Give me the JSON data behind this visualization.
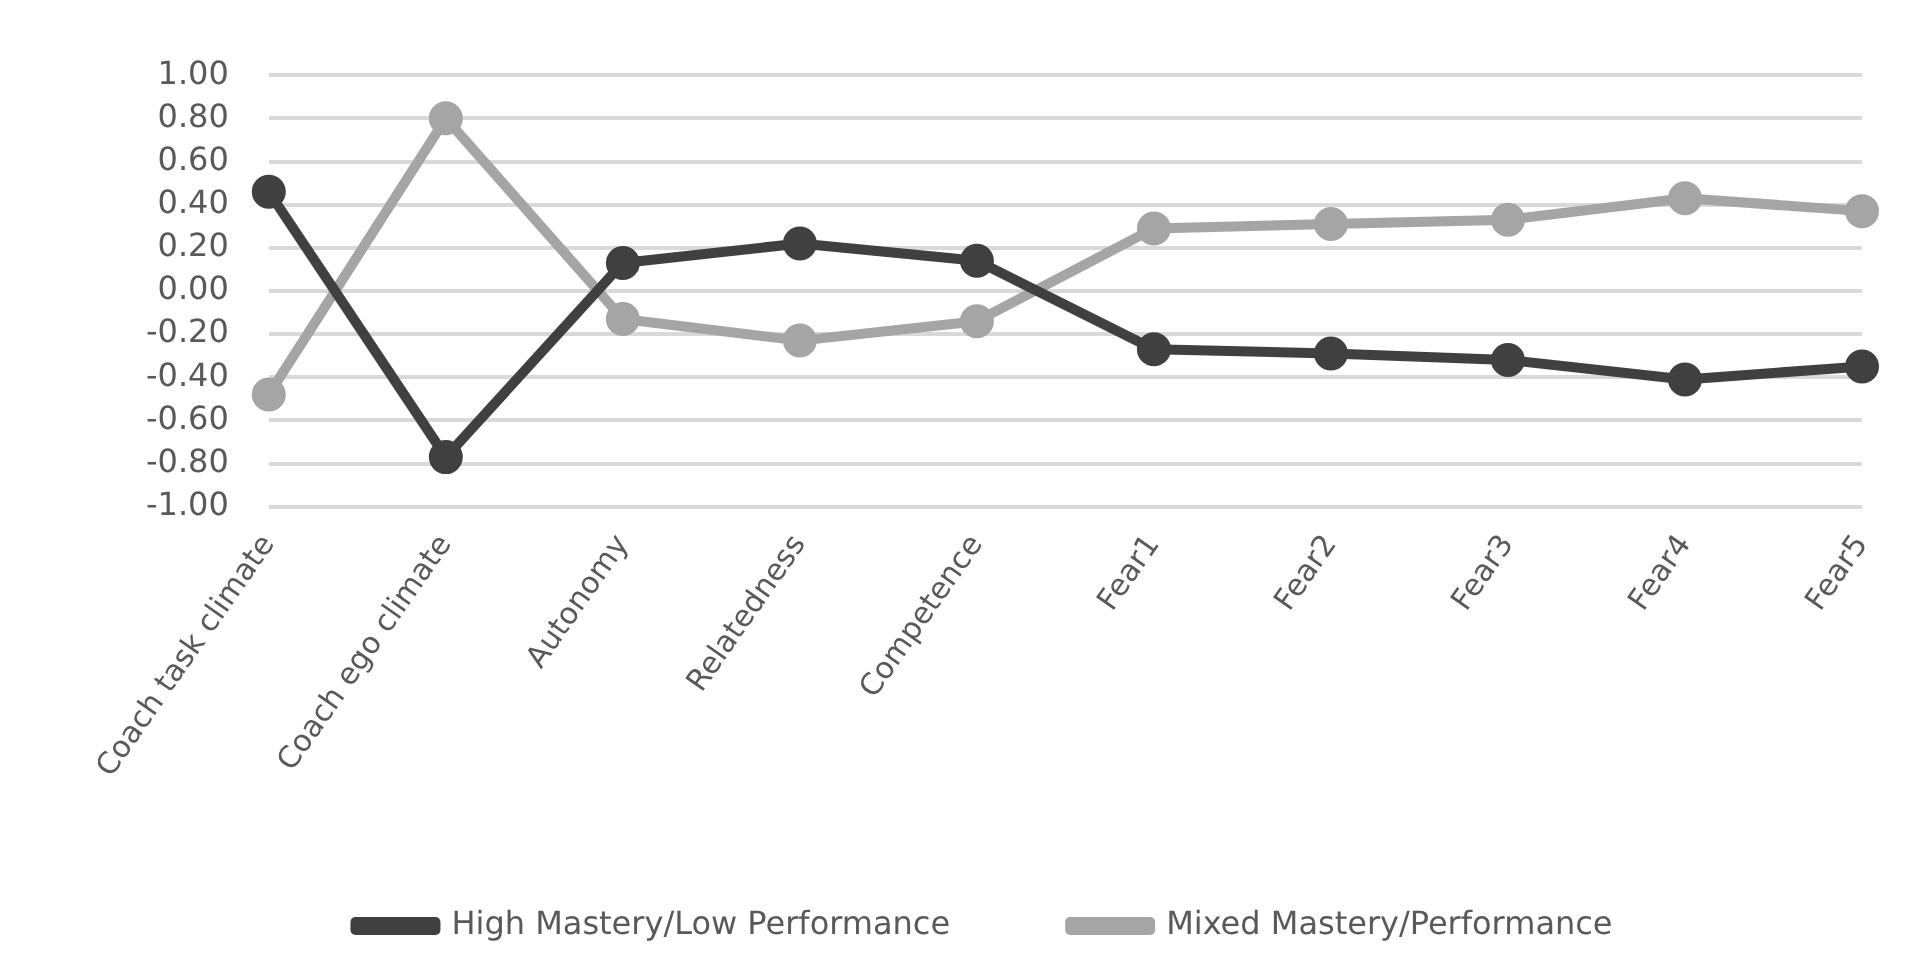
{
  "chart_data": {
    "type": "line",
    "categories": [
      "Coach task climate",
      "Coach ego climate",
      "Autonomy",
      "Relatedness",
      "Competence",
      "Fear1",
      "Fear2",
      "Fear3",
      "Fear4",
      "Fear5"
    ],
    "series": [
      {
        "name": "High Mastery/Low Performance",
        "color": "#404040",
        "values": [
          0.46,
          -0.77,
          0.13,
          0.22,
          0.14,
          -0.27,
          -0.29,
          -0.32,
          -0.41,
          -0.35
        ]
      },
      {
        "name": "Mixed Mastery/Performance",
        "color": "#a5a5a5",
        "values": [
          -0.48,
          0.8,
          -0.13,
          -0.23,
          -0.14,
          0.29,
          0.31,
          0.33,
          0.43,
          0.37
        ]
      }
    ],
    "ylim": [
      -1,
      1
    ],
    "yticks": [
      {
        "value": -1,
        "label": "-1.00"
      },
      {
        "value": -0.8,
        "label": "-0.80"
      },
      {
        "value": -0.6,
        "label": "-0.60"
      },
      {
        "value": -0.4,
        "label": "-0.40"
      },
      {
        "value": -0.2,
        "label": "-0.20"
      },
      {
        "value": 0,
        "label": "0.00"
      },
      {
        "value": 0.2,
        "label": "0.20"
      },
      {
        "value": 0.4,
        "label": "0.40"
      },
      {
        "value": 0.6,
        "label": "0.60"
      },
      {
        "value": 0.8,
        "label": "0.80"
      },
      {
        "value": 1,
        "label": "1.00"
      }
    ],
    "grid": "y",
    "legend": "bottom",
    "marker": "circle",
    "line_style": "solid"
  }
}
